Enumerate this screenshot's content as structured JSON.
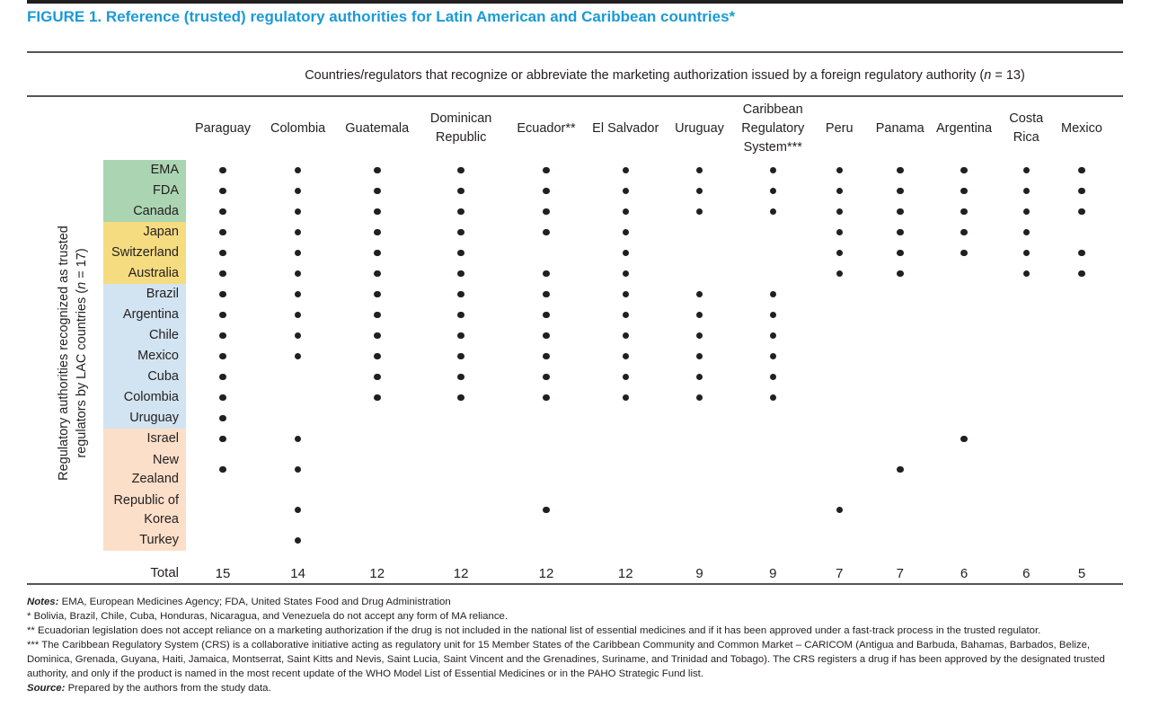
{
  "title": "FIGURE 1. Reference (trusted) regulatory authorities for Latin American and Caribbean countries*",
  "span_header": {
    "text": "Countries/regulators that recognize or abbreviate the marketing authorization issued by a foreign regulatory authority (",
    "n": "n",
    "rest": " = 13)"
  },
  "y_axis": {
    "line1": "Regulatory authorities recognized as trusted",
    "line2": "regulators by LAC countries (",
    "n": "n",
    "rest": " = 17)"
  },
  "total_label": "Total",
  "colors": {
    "title": "#1b9ad6",
    "ink": "#231f20",
    "rule": "#55565a",
    "green": "#abd5b2",
    "yellow": "#f6dc80",
    "blue": "#d2e4f1",
    "peach": "#fbdfc9"
  },
  "chart_data": {
    "type": "dot-matrix",
    "columns": [
      {
        "label": "Paraguay",
        "total": 15
      },
      {
        "label": "Colombia",
        "total": 14
      },
      {
        "label": "Guatemala",
        "total": 12
      },
      {
        "label": "Dominican Republic",
        "total": 12
      },
      {
        "label": "Ecuador**",
        "total": 12
      },
      {
        "label": "El Salvador",
        "total": 12
      },
      {
        "label": "Uruguay",
        "total": 9
      },
      {
        "label": "Caribbean Regulatory System***",
        "total": 9
      },
      {
        "label": "Peru",
        "total": 7
      },
      {
        "label": "Panama",
        "total": 7
      },
      {
        "label": "Argentina",
        "total": 6
      },
      {
        "label": "Costa Rica",
        "total": 6
      },
      {
        "label": "Mexico",
        "total": 5
      }
    ],
    "rows": [
      {
        "label": "EMA",
        "group": "green"
      },
      {
        "label": "FDA",
        "group": "green"
      },
      {
        "label": "Canada",
        "group": "green"
      },
      {
        "label": "Japan",
        "group": "yellow"
      },
      {
        "label": "Switzerland",
        "group": "yellow"
      },
      {
        "label": "Australia",
        "group": "yellow"
      },
      {
        "label": "Brazil",
        "group": "blue"
      },
      {
        "label": "Argentina",
        "group": "blue"
      },
      {
        "label": "Chile",
        "group": "blue"
      },
      {
        "label": "Mexico",
        "group": "blue"
      },
      {
        "label": "Cuba",
        "group": "blue"
      },
      {
        "label": "Colombia",
        "group": "blue"
      },
      {
        "label": "Uruguay",
        "group": "blue"
      },
      {
        "label": "Israel",
        "group": "peach"
      },
      {
        "label": "New Zealand",
        "group": "peach",
        "tall": true
      },
      {
        "label": "Republic of Korea",
        "group": "peach",
        "tall": true
      },
      {
        "label": "Turkey",
        "group": "peach"
      }
    ],
    "dots": [
      [
        1,
        1,
        1,
        1,
        1,
        1,
        1,
        1,
        1,
        1,
        1,
        1,
        1
      ],
      [
        1,
        1,
        1,
        1,
        1,
        1,
        1,
        1,
        1,
        1,
        1,
        1,
        1
      ],
      [
        1,
        1,
        1,
        1,
        1,
        1,
        1,
        1,
        1,
        1,
        1,
        1,
        1
      ],
      [
        1,
        1,
        1,
        1,
        1,
        1,
        0,
        0,
        1,
        1,
        1,
        1,
        0
      ],
      [
        1,
        1,
        1,
        1,
        0,
        1,
        0,
        0,
        1,
        1,
        1,
        1,
        1
      ],
      [
        1,
        1,
        1,
        1,
        1,
        1,
        0,
        0,
        1,
        1,
        0,
        1,
        1
      ],
      [
        1,
        1,
        1,
        1,
        1,
        1,
        1,
        1,
        0,
        0,
        0,
        0,
        0
      ],
      [
        1,
        1,
        1,
        1,
        1,
        1,
        1,
        1,
        0,
        0,
        0,
        0,
        0
      ],
      [
        1,
        1,
        1,
        1,
        1,
        1,
        1,
        1,
        0,
        0,
        0,
        0,
        0
      ],
      [
        1,
        1,
        1,
        1,
        1,
        1,
        1,
        1,
        0,
        0,
        0,
        0,
        0
      ],
      [
        1,
        0,
        1,
        1,
        1,
        1,
        1,
        1,
        0,
        0,
        0,
        0,
        0
      ],
      [
        1,
        0,
        1,
        1,
        1,
        1,
        1,
        1,
        0,
        0,
        0,
        0,
        0
      ],
      [
        1,
        0,
        0,
        0,
        0,
        0,
        0,
        0,
        0,
        0,
        0,
        0,
        0
      ],
      [
        1,
        1,
        0,
        0,
        0,
        0,
        0,
        0,
        0,
        0,
        1,
        0,
        0
      ],
      [
        1,
        1,
        0,
        0,
        0,
        0,
        0,
        0,
        0,
        1,
        0,
        0,
        0
      ],
      [
        0,
        1,
        0,
        0,
        1,
        0,
        0,
        0,
        1,
        0,
        0,
        0,
        0
      ],
      [
        0,
        1,
        0,
        0,
        0,
        0,
        0,
        0,
        0,
        0,
        0,
        0,
        0
      ]
    ],
    "totals": [
      15,
      14,
      12,
      12,
      12,
      12,
      9,
      9,
      7,
      7,
      6,
      6,
      5
    ]
  },
  "notes": {
    "lead_label": "Notes:",
    "lead_text": " EMA, European Medicines Agency; FDA, United States Food and Drug Administration",
    "items": [
      "* Bolivia, Brazil, Chile, Cuba, Honduras, Nicaragua, and Venezuela do not accept any form of MA reliance.",
      "** Ecuadorian legislation does not accept reliance on a marketing authorization if the drug is not included in the national list of essential medicines and if it has been approved under a fast-track process in the trusted regulator.",
      "*** The Caribbean Regulatory System (CRS) is a collaborative initiative acting as regulatory unit for 15 Member States of the Caribbean Community and Common Market – CARICOM (Antigua and Barbuda, Bahamas, Barbados, Belize, Dominica, Grenada, Guyana, Haiti, Jamaica, Montserrat, Saint Kitts and Nevis, Saint Lucia, Saint Vincent and the Grenadines, Suriname, and Trinidad and Tobago). The CRS registers a drug if has been approved by the designated trusted authority, and only if the product is named in the most recent update of the WHO Model List of Essential Medicines or in the PAHO Strategic Fund list."
    ],
    "source_label": "Source:",
    "source_text": " Prepared by the authors from the study data."
  }
}
